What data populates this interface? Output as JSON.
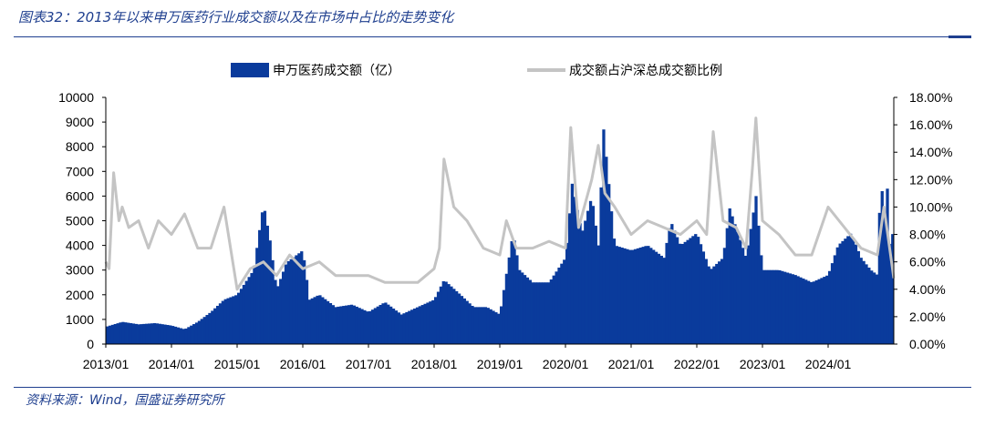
{
  "figure": {
    "title": "图表32：2013年以来申万医药行业成交额以及在市场中占比的走势变化",
    "source": "资料来源：Wind，国盛证券研究所"
  },
  "colors": {
    "bar": "#0a3b9c",
    "line": "#c4c4c4",
    "text": "#1f3f8f"
  },
  "chart_data": {
    "type": "bar",
    "title": "图表32：2013年以来申万医药行业成交额以及在市场中占比的走势变化",
    "legend_position": "top",
    "grid": false,
    "x_labels": [
      "2013/01",
      "2014/01",
      "2015/01",
      "2016/01",
      "2017/01",
      "2018/01",
      "2019/01",
      "2020/01",
      "2021/01",
      "2022/01",
      "2023/01",
      "2024/01"
    ],
    "x_range": [
      2013.0,
      2025.0
    ],
    "y_left": {
      "range": [
        0,
        10000
      ],
      "ticks": [
        "0",
        "1000",
        "2000",
        "3000",
        "4000",
        "5000",
        "6000",
        "7000",
        "8000",
        "9000",
        "10000"
      ]
    },
    "y_right": {
      "range": [
        0,
        18
      ],
      "ticks": [
        "0.00%",
        "2.00%",
        "4.00%",
        "6.00%",
        "8.00%",
        "10.00%",
        "12.00%",
        "14.00%",
        "16.00%",
        "18.00%"
      ]
    },
    "series": [
      {
        "name": "申万医药成交额（亿）",
        "type": "bar",
        "axis": "left",
        "x": [
          2013.0,
          2013.25,
          2013.5,
          2013.75,
          2014.0,
          2014.2,
          2014.4,
          2014.6,
          2014.8,
          2015.0,
          2015.25,
          2015.4,
          2015.5,
          2015.6,
          2015.75,
          2016.0,
          2016.1,
          2016.25,
          2016.5,
          2016.75,
          2017.0,
          2017.25,
          2017.5,
          2017.75,
          2018.0,
          2018.15,
          2018.4,
          2018.6,
          2018.8,
          2019.0,
          2019.2,
          2019.3,
          2019.5,
          2019.75,
          2020.0,
          2020.1,
          2020.25,
          2020.4,
          2020.5,
          2020.58,
          2020.75,
          2021.0,
          2021.25,
          2021.5,
          2021.6,
          2021.75,
          2022.0,
          2022.2,
          2022.4,
          2022.5,
          2022.75,
          2022.9,
          2023.0,
          2023.25,
          2023.5,
          2023.75,
          2024.0,
          2024.15,
          2024.35,
          2024.5,
          2024.65,
          2024.75,
          2024.8,
          2024.85,
          2024.9,
          2024.95,
          2025.0
        ],
        "values": [
          700,
          900,
          800,
          850,
          750,
          600,
          900,
          1300,
          1800,
          2000,
          3000,
          5700,
          4200,
          2200,
          3300,
          3800,
          1800,
          2000,
          1500,
          1600,
          1300,
          1700,
          1200,
          1500,
          1800,
          2600,
          2000,
          1500,
          1500,
          1200,
          4500,
          3000,
          2500,
          2500,
          3500,
          6500,
          4500,
          6000,
          4000,
          8700,
          4000,
          3800,
          4000,
          3500,
          5000,
          4000,
          4500,
          3000,
          3500,
          5500,
          3500,
          6000,
          3000,
          3000,
          2800,
          2500,
          2800,
          4000,
          4500,
          3500,
          3000,
          2800,
          7000,
          5000,
          6300,
          3500,
          5100
        ]
      },
      {
        "name": "成交额占沪深总成交额比例",
        "type": "line",
        "axis": "right",
        "x": [
          2013.0,
          2013.05,
          2013.12,
          2013.2,
          2013.25,
          2013.35,
          2013.5,
          2013.65,
          2013.8,
          2014.0,
          2014.2,
          2014.4,
          2014.6,
          2014.8,
          2015.0,
          2015.2,
          2015.4,
          2015.6,
          2015.8,
          2016.0,
          2016.25,
          2016.5,
          2016.75,
          2017.0,
          2017.25,
          2017.5,
          2017.75,
          2018.0,
          2018.08,
          2018.15,
          2018.3,
          2018.5,
          2018.75,
          2019.0,
          2019.1,
          2019.25,
          2019.5,
          2019.75,
          2020.0,
          2020.08,
          2020.2,
          2020.4,
          2020.5,
          2020.6,
          2020.75,
          2021.0,
          2021.25,
          2021.5,
          2021.75,
          2022.0,
          2022.15,
          2022.25,
          2022.4,
          2022.6,
          2022.75,
          2022.85,
          2022.9,
          2023.0,
          2023.25,
          2023.5,
          2023.75,
          2024.0,
          2024.25,
          2024.5,
          2024.75,
          2024.85,
          2025.0
        ],
        "values": [
          6.0,
          5.5,
          12.5,
          9.0,
          10.0,
          8.5,
          9.0,
          7.0,
          9.0,
          8.0,
          9.5,
          7.0,
          7.0,
          10.0,
          4.0,
          5.5,
          6.0,
          5.0,
          6.5,
          5.5,
          6.0,
          5.0,
          5.0,
          5.0,
          4.5,
          4.5,
          4.5,
          5.5,
          7.0,
          13.5,
          10.0,
          9.0,
          7.0,
          6.5,
          9.0,
          7.0,
          7.0,
          7.5,
          7.0,
          15.8,
          8.5,
          12.0,
          14.5,
          11.0,
          10.0,
          8.0,
          9.0,
          8.5,
          8.0,
          9.0,
          8.0,
          15.5,
          9.0,
          8.5,
          7.0,
          13.0,
          16.5,
          9.0,
          8.0,
          6.5,
          6.5,
          10.0,
          8.5,
          7.0,
          6.5,
          10.0,
          4.8
        ]
      }
    ]
  }
}
